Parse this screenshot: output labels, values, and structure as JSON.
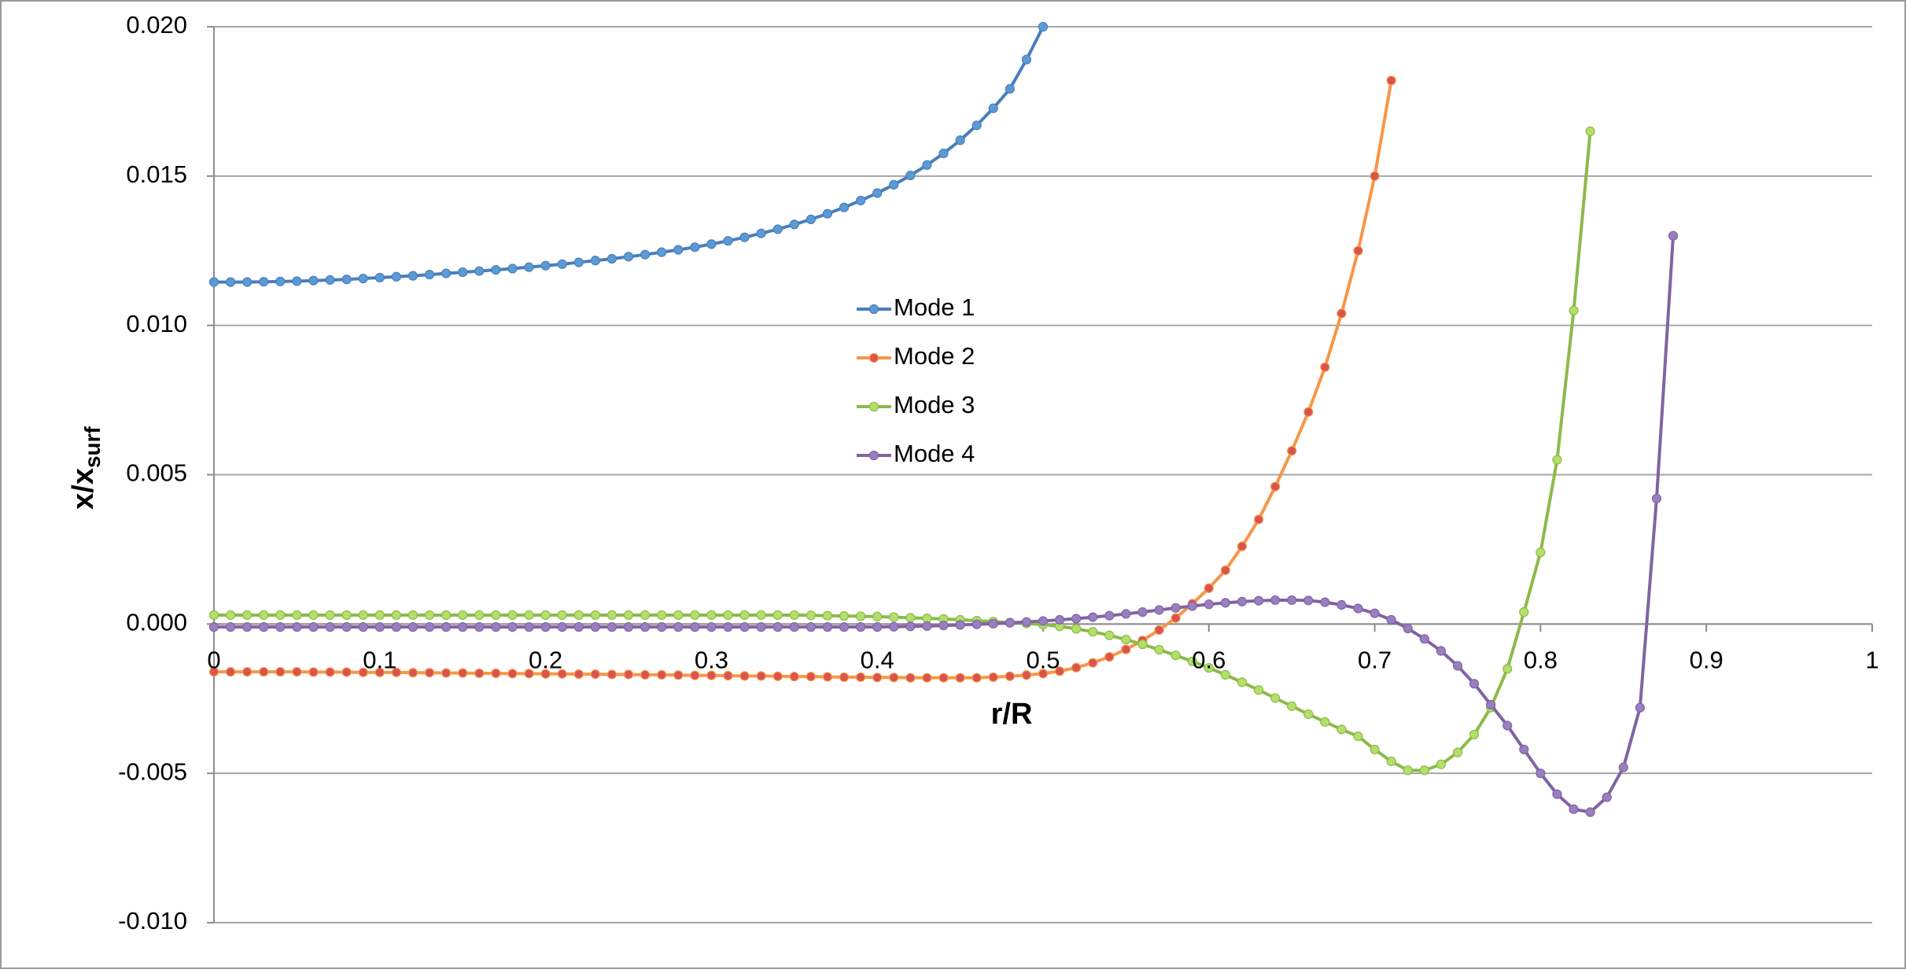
{
  "chart_data": {
    "type": "line",
    "x_label": "r/R",
    "y_label": "x/x",
    "y_label_sub": "surf",
    "xlim": [
      0,
      1
    ],
    "xticks": [
      0,
      0.1,
      0.2,
      0.3,
      0.4,
      0.5,
      0.6,
      0.7,
      0.8,
      0.9,
      1
    ],
    "ylim": [
      -0.01,
      0.02
    ],
    "yticks": [
      {
        "value": 0.02,
        "label": "0.020"
      },
      {
        "value": 0.015,
        "label": "0.015"
      },
      {
        "value": 0.01,
        "label": "0.010"
      },
      {
        "value": 0.005,
        "label": "0.005"
      },
      {
        "value": 0,
        "label": "0.000"
      },
      {
        "value": -0.005,
        "label": "-0.005"
      },
      {
        "value": -0.01,
        "label": "-0.010"
      }
    ],
    "grid": true,
    "legend": "center",
    "x": [
      0,
      0.01,
      0.02,
      0.03,
      0.04,
      0.05,
      0.06,
      0.07,
      0.08,
      0.09,
      0.1,
      0.11,
      0.12,
      0.13,
      0.14,
      0.15,
      0.16,
      0.17,
      0.18,
      0.19,
      0.2,
      0.21,
      0.22,
      0.23,
      0.24,
      0.25,
      0.26,
      0.27,
      0.28,
      0.29,
      0.3,
      0.31,
      0.32,
      0.33,
      0.34,
      0.35,
      0.36,
      0.37,
      0.38,
      0.39,
      0.4,
      0.41,
      0.42,
      0.43,
      0.44,
      0.45,
      0.46,
      0.47,
      0.48,
      0.49,
      0.5,
      0.51,
      0.52,
      0.53,
      0.54,
      0.55,
      0.56,
      0.57,
      0.58,
      0.59,
      0.6,
      0.61,
      0.62,
      0.63,
      0.64,
      0.65,
      0.66,
      0.67,
      0.68,
      0.69,
      0.7,
      0.71,
      0.72,
      0.73,
      0.74,
      0.75,
      0.76,
      0.77,
      0.78,
      0.79,
      0.8,
      0.81,
      0.82,
      0.83,
      0.84,
      0.85,
      0.86,
      0.87,
      0.88,
      0.89
    ],
    "series": [
      {
        "name": "Mode 1",
        "color": "#4a7ebb",
        "marker_color": "#5b9bd5",
        "values": [
          0.01145,
          0.01145,
          0.01145,
          0.01146,
          0.01147,
          0.01148,
          0.0115,
          0.01152,
          0.01154,
          0.01157,
          0.0116,
          0.01163,
          0.01166,
          0.0117,
          0.01174,
          0.01178,
          0.01182,
          0.01186,
          0.0119,
          0.01195,
          0.012,
          0.01205,
          0.01211,
          0.01217,
          0.01223,
          0.0123,
          0.01237,
          0.01245,
          0.01253,
          0.01262,
          0.01272,
          0.01283,
          0.01295,
          0.01308,
          0.01322,
          0.01338,
          0.01355,
          0.01374,
          0.01395,
          0.01418,
          0.01443,
          0.01471,
          0.01502,
          0.01537,
          0.01576,
          0.0162,
          0.0167,
          0.01727,
          0.01792,
          0.0189,
          0.02,
          null,
          null,
          null,
          null,
          null,
          null,
          null,
          null,
          null,
          null,
          null,
          null,
          null,
          null,
          null,
          null,
          null,
          null,
          null,
          null,
          null,
          null,
          null,
          null,
          null,
          null,
          null,
          null,
          null,
          null,
          null,
          null,
          null,
          null,
          null,
          null,
          null,
          null,
          null
        ]
      },
      {
        "name": "Mode 2",
        "color": "#f79646",
        "marker_color": "#d9534f",
        "values": [
          -0.0016,
          -0.0016,
          -0.0016,
          -0.0016,
          -0.0016,
          -0.0016,
          -0.00161,
          -0.00161,
          -0.00161,
          -0.00162,
          -0.00162,
          -0.00162,
          -0.00163,
          -0.00163,
          -0.00164,
          -0.00164,
          -0.00165,
          -0.00165,
          -0.00166,
          -0.00166,
          -0.00167,
          -0.00167,
          -0.00168,
          -0.00168,
          -0.00169,
          -0.00169,
          -0.0017,
          -0.0017,
          -0.00171,
          -0.00172,
          -0.00172,
          -0.00173,
          -0.00174,
          -0.00174,
          -0.00175,
          -0.00176,
          -0.00176,
          -0.00177,
          -0.00178,
          -0.00178,
          -0.00179,
          -0.00179,
          -0.0018,
          -0.0018,
          -0.0018,
          -0.0018,
          -0.0018,
          -0.00178,
          -0.00175,
          -0.00171,
          -0.00166,
          -0.00158,
          -0.00146,
          -0.0013,
          -0.0011,
          -0.00085,
          -0.00055,
          -0.0002,
          0.0002,
          0.00068,
          0.0012,
          0.0018,
          0.0026,
          0.0035,
          0.0046,
          0.0058,
          0.0071,
          0.0086,
          0.0104,
          0.0125,
          0.015,
          0.0182,
          null,
          null,
          null,
          null,
          null,
          null,
          null,
          null,
          null,
          null,
          null,
          null,
          null,
          null,
          null,
          null,
          null,
          null
        ]
      },
      {
        "name": "Mode 3",
        "color": "#8cba4a",
        "marker_color": "#b3e069",
        "values": [
          0.0003,
          0.0003,
          0.0003,
          0.0003,
          0.0003,
          0.0003,
          0.0003,
          0.0003,
          0.0003,
          0.0003,
          0.0003,
          0.0003,
          0.0003,
          0.0003,
          0.0003,
          0.0003,
          0.0003,
          0.0003,
          0.0003,
          0.0003,
          0.0003,
          0.0003,
          0.0003,
          0.0003,
          0.0003,
          0.0003,
          0.0003,
          0.0003,
          0.0003,
          0.0003,
          0.0003,
          0.0003,
          0.0003,
          0.0003,
          0.0003,
          0.0003,
          0.00029,
          0.00028,
          0.00027,
          0.00026,
          0.00025,
          0.00023,
          0.00021,
          0.00019,
          0.00017,
          0.00014,
          0.00011,
          8e-05,
          5e-05,
          2e-05,
          -2e-05,
          -8e-05,
          -0.00016,
          -0.00026,
          -0.00038,
          -0.00052,
          -0.00068,
          -0.00086,
          -0.00105,
          -0.00125,
          -0.00147,
          -0.0017,
          -0.00195,
          -0.00221,
          -0.00248,
          -0.00275,
          -0.00302,
          -0.00328,
          -0.00353,
          -0.00376,
          -0.0042,
          -0.0046,
          -0.0049,
          -0.0049,
          -0.0047,
          -0.0043,
          -0.0037,
          -0.0028,
          -0.0015,
          0.0004,
          0.0024,
          0.0055,
          0.0105,
          0.0165,
          null,
          null,
          null,
          null,
          null,
          null
        ]
      },
      {
        "name": "Mode 4",
        "color": "#8064a2",
        "marker_color": "#9a7fc0",
        "values": [
          -0.0001,
          -0.0001,
          -0.0001,
          -0.0001,
          -0.0001,
          -0.0001,
          -0.0001,
          -0.0001,
          -0.0001,
          -0.0001,
          -0.0001,
          -0.0001,
          -0.0001,
          -0.0001,
          -0.0001,
          -0.0001,
          -0.0001,
          -0.0001,
          -0.0001,
          -0.0001,
          -0.0001,
          -0.0001,
          -0.0001,
          -0.0001,
          -0.0001,
          -0.0001,
          -0.0001,
          -0.0001,
          -0.0001,
          -0.0001,
          -0.0001,
          -0.0001,
          -0.0001,
          -0.0001,
          -0.0001,
          -0.0001,
          -0.0001,
          -0.0001,
          -0.0001,
          -0.0001,
          -0.0001,
          -9e-05,
          -8e-05,
          -7e-05,
          -5e-05,
          -3e-05,
          -1e-05,
          1e-05,
          4e-05,
          7e-05,
          0.0001,
          0.00014,
          0.00018,
          0.00023,
          0.00028,
          0.00034,
          0.0004,
          0.00047,
          0.00054,
          0.0006,
          0.00066,
          0.00071,
          0.00075,
          0.00078,
          0.0008,
          0.0008,
          0.00079,
          0.00073,
          0.00064,
          0.00052,
          0.00036,
          0.00014,
          -0.00015,
          -0.0005,
          -0.0009,
          -0.0014,
          -0.002,
          -0.0027,
          -0.0034,
          -0.0042,
          -0.005,
          -0.0057,
          -0.0062,
          -0.0063,
          -0.0058,
          -0.0048,
          -0.0028,
          0.0042,
          0.013,
          null
        ]
      }
    ]
  }
}
